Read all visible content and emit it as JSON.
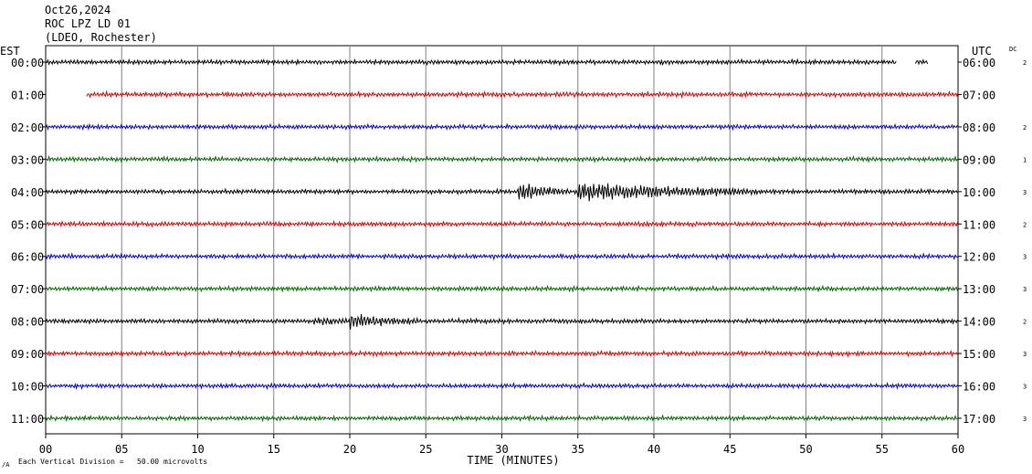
{
  "header": {
    "date": "Oct26,2024",
    "station": "ROC LPZ LD 01",
    "network": "(LDEO, Rochester)"
  },
  "labels": {
    "left_tz": "EST",
    "right_tz": "UTC",
    "dc": "DC",
    "x_axis": "TIME (MINUTES)",
    "scale_note": "Each Vertical Division =   50.00 microvolts"
  },
  "colors": {
    "trace_cycle": [
      "#000000",
      "#d40000",
      "#0000c8",
      "#006400"
    ],
    "grid": "#808080"
  },
  "chart_data": {
    "type": "line",
    "xlabel": "TIME (MINUTES)",
    "xlim": [
      0,
      60
    ],
    "x_ticks": [
      "00",
      "05",
      "10",
      "15",
      "20",
      "25",
      "30",
      "35",
      "40",
      "45",
      "50",
      "55",
      "60"
    ],
    "rows": [
      {
        "left": "00:00",
        "right": "06:00",
        "dc": "2",
        "start": 0,
        "end": 56,
        "extra": [
          57.2,
          58.0
        ]
      },
      {
        "left": "01:00",
        "right": "07:00",
        "dc": "",
        "start": 2.7,
        "end": 60
      },
      {
        "left": "02:00",
        "right": "08:00",
        "dc": "2",
        "start": 0,
        "end": 60
      },
      {
        "left": "03:00",
        "right": "09:00",
        "dc": "1",
        "start": 0,
        "end": 60
      },
      {
        "left": "04:00",
        "right": "10:00",
        "dc": "3",
        "start": 0,
        "end": 60,
        "events": [
          {
            "t": 31,
            "amp": 10,
            "dur": 3.5
          },
          {
            "t": 35,
            "amp": 10,
            "dur": 12
          }
        ]
      },
      {
        "left": "05:00",
        "right": "11:00",
        "dc": "2",
        "start": 0,
        "end": 60
      },
      {
        "left": "06:00",
        "right": "12:00",
        "dc": "3",
        "start": 0,
        "end": 60
      },
      {
        "left": "07:00",
        "right": "13:00",
        "dc": "3",
        "start": 0,
        "end": 60
      },
      {
        "left": "08:00",
        "right": "14:00",
        "dc": "2",
        "start": 0,
        "end": 60,
        "events": [
          {
            "t": 17.6,
            "amp": 4,
            "dur": 2.5
          },
          {
            "t": 20,
            "amp": 7,
            "dur": 4.5
          }
        ]
      },
      {
        "left": "09:00",
        "right": "15:00",
        "dc": "3",
        "start": 0,
        "end": 60
      },
      {
        "left": "10:00",
        "right": "16:00",
        "dc": "3",
        "start": 0,
        "end": 60
      },
      {
        "left": "11:00",
        "right": "17:00",
        "dc": "3",
        "start": 0,
        "end": 60
      }
    ]
  }
}
